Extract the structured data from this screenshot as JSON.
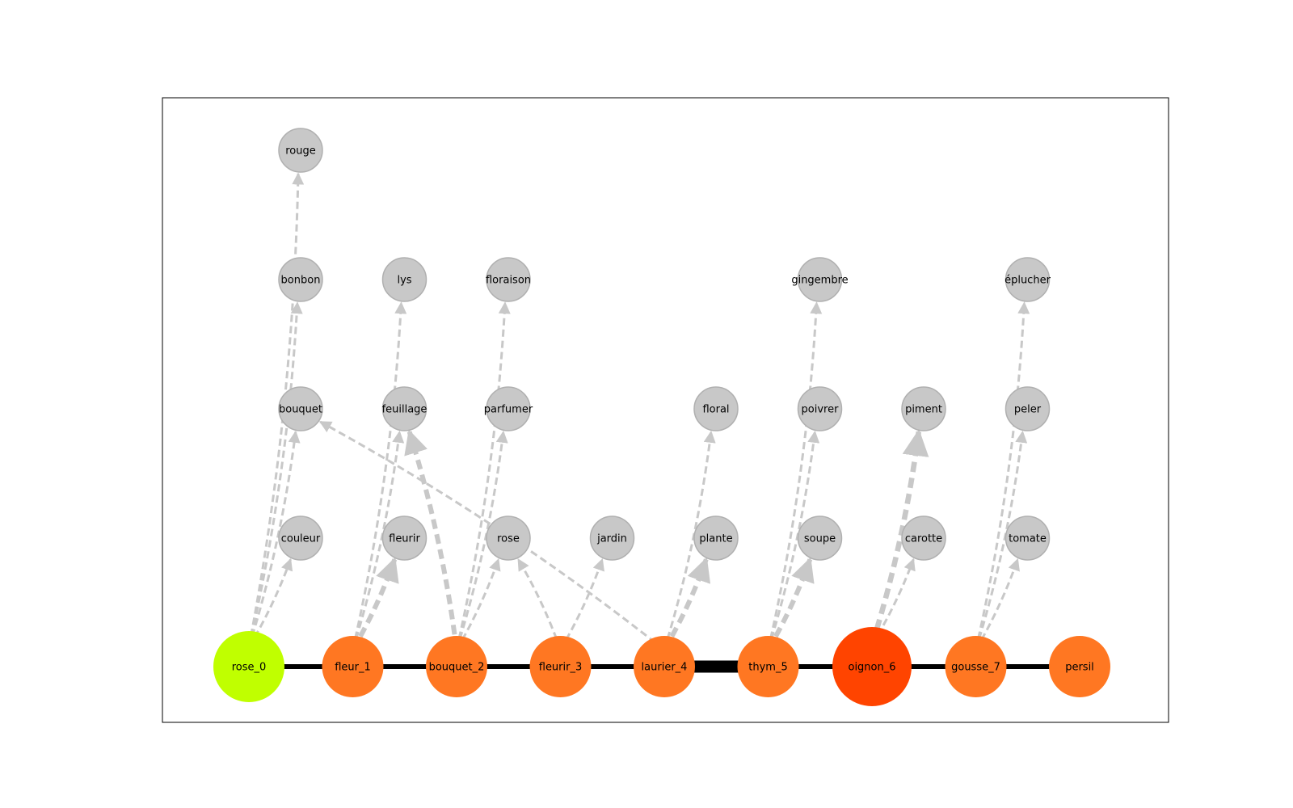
{
  "colors": {
    "start": "#c0ff00",
    "path": "#ff7722",
    "hub": "#ff4400",
    "neighbor": "#c8c8c8",
    "neighbor_border": "#b0b0b0",
    "chain_edge": "#000000",
    "neighbor_edge": "#c8c8c8"
  },
  "chain": [
    {
      "id": "rose_0",
      "label": "rose_0",
      "role": "start"
    },
    {
      "id": "fleur_1",
      "label": "fleur_1",
      "role": "path"
    },
    {
      "id": "bouquet_2",
      "label": "bouquet_2",
      "role": "path"
    },
    {
      "id": "fleurir_3",
      "label": "fleurir_3",
      "role": "path"
    },
    {
      "id": "laurier_4",
      "label": "laurier_4",
      "role": "path"
    },
    {
      "id": "thym_5",
      "label": "thym_5",
      "role": "path"
    },
    {
      "id": "oignon_6",
      "label": "oignon_6",
      "role": "hub"
    },
    {
      "id": "gousse_7",
      "label": "gousse_7",
      "role": "path"
    },
    {
      "id": "persil",
      "label": "persil",
      "role": "path"
    }
  ],
  "chain_links": [
    {
      "from": "rose_0",
      "to": "fleur_1",
      "weight": 1
    },
    {
      "from": "fleur_1",
      "to": "bouquet_2",
      "weight": 1
    },
    {
      "from": "bouquet_2",
      "to": "fleurir_3",
      "weight": 1
    },
    {
      "from": "fleurir_3",
      "to": "laurier_4",
      "weight": 1
    },
    {
      "from": "laurier_4",
      "to": "thym_5",
      "weight": 2.5
    },
    {
      "from": "thym_5",
      "to": "oignon_6",
      "weight": 1
    },
    {
      "from": "oignon_6",
      "to": "gousse_7",
      "weight": 1
    },
    {
      "from": "gousse_7",
      "to": "persil",
      "weight": 1
    }
  ],
  "neighbors": [
    {
      "id": "couleur",
      "label": "couleur"
    },
    {
      "id": "bouquet",
      "label": "bouquet"
    },
    {
      "id": "bonbon",
      "label": "bonbon"
    },
    {
      "id": "rouge",
      "label": "rouge"
    },
    {
      "id": "fleurir",
      "label": "fleurir"
    },
    {
      "id": "feuillage",
      "label": "feuillage"
    },
    {
      "id": "lys",
      "label": "lys"
    },
    {
      "id": "rose",
      "label": "rose"
    },
    {
      "id": "parfumer",
      "label": "parfumer"
    },
    {
      "id": "floraison",
      "label": "floraison"
    },
    {
      "id": "jardin",
      "label": "jardin"
    },
    {
      "id": "plante",
      "label": "plante"
    },
    {
      "id": "floral",
      "label": "floral"
    },
    {
      "id": "soupe",
      "label": "soupe"
    },
    {
      "id": "poivrer",
      "label": "poivrer"
    },
    {
      "id": "gingembre",
      "label": "gingembre"
    },
    {
      "id": "carotte",
      "label": "carotte"
    },
    {
      "id": "piment",
      "label": "piment"
    },
    {
      "id": "tomate",
      "label": "tomate"
    },
    {
      "id": "peler",
      "label": "peler"
    },
    {
      "id": "éplucher",
      "label": "éplucher"
    }
  ],
  "neighbor_links": [
    {
      "from": "rose_0",
      "to": "couleur",
      "weight": 1
    },
    {
      "from": "rose_0",
      "to": "bouquet",
      "weight": 1
    },
    {
      "from": "rose_0",
      "to": "bonbon",
      "weight": 1
    },
    {
      "from": "rose_0",
      "to": "rouge",
      "weight": 1
    },
    {
      "from": "fleur_1",
      "to": "fleurir",
      "weight": 2
    },
    {
      "from": "fleur_1",
      "to": "feuillage",
      "weight": 1
    },
    {
      "from": "fleur_1",
      "to": "lys",
      "weight": 1
    },
    {
      "from": "bouquet_2",
      "to": "feuillage",
      "weight": 2
    },
    {
      "from": "bouquet_2",
      "to": "rose",
      "weight": 1
    },
    {
      "from": "bouquet_2",
      "to": "parfumer",
      "weight": 1
    },
    {
      "from": "bouquet_2",
      "to": "floraison",
      "weight": 1
    },
    {
      "from": "fleurir_3",
      "to": "rose",
      "weight": 1
    },
    {
      "from": "fleurir_3",
      "to": "jardin",
      "weight": 1
    },
    {
      "from": "laurier_4",
      "to": "bouquet",
      "weight": 1
    },
    {
      "from": "laurier_4",
      "to": "plante",
      "weight": 2
    },
    {
      "from": "laurier_4",
      "to": "floral",
      "weight": 1
    },
    {
      "from": "thym_5",
      "to": "soupe",
      "weight": 2
    },
    {
      "from": "thym_5",
      "to": "poivrer",
      "weight": 1
    },
    {
      "from": "thym_5",
      "to": "gingembre",
      "weight": 1
    },
    {
      "from": "oignon_6",
      "to": "carotte",
      "weight": 1
    },
    {
      "from": "oignon_6",
      "to": "piment",
      "weight": 2.2
    },
    {
      "from": "gousse_7",
      "to": "tomate",
      "weight": 1
    },
    {
      "from": "gousse_7",
      "to": "peler",
      "weight": 1
    },
    {
      "from": "gousse_7",
      "to": "éplucher",
      "weight": 1
    }
  ]
}
